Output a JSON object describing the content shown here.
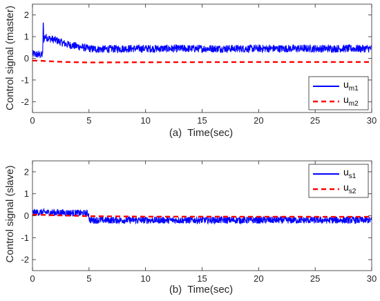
{
  "chart_data": [
    {
      "type": "line",
      "ylabel": "Control signal (master)",
      "xlabel_prefix": "(a)",
      "xlabel": "Time(sec)",
      "xlim": [
        0,
        30
      ],
      "ylim": [
        -2.5,
        2.5
      ],
      "xticks": [
        "0",
        "5",
        "10",
        "15",
        "20",
        "25",
        "30"
      ],
      "yticks": [
        "-2",
        "-1",
        "0",
        "1",
        "2"
      ],
      "grid": false,
      "legend_position": "bottom-right",
      "series": [
        {
          "name": "u_m1",
          "legend_main": "u",
          "legend_sub": "m1",
          "color": "#0000ff",
          "style": "solid",
          "noise_amplitude": 0.18,
          "x": [
            0,
            0.9,
            0.95,
            1.0,
            1.05,
            1.1,
            1.3,
            1.6,
            2,
            2.5,
            3,
            3.5,
            4,
            4.5,
            5,
            6,
            8,
            10,
            15,
            20,
            25,
            30
          ],
          "y": [
            0.2,
            0.15,
            1.8,
            0.85,
            0.95,
            1.0,
            0.95,
            0.9,
            0.85,
            0.75,
            0.65,
            0.6,
            0.55,
            0.5,
            0.45,
            0.42,
            0.45,
            0.45,
            0.45,
            0.45,
            0.45,
            0.45
          ]
        },
        {
          "name": "u_m2",
          "legend_main": "u",
          "legend_sub": "m2",
          "color": "#ff0000",
          "style": "dashed",
          "noise_amplitude": 0,
          "x": [
            0,
            1,
            2,
            3,
            5,
            10,
            20,
            30
          ],
          "y": [
            -0.1,
            -0.12,
            -0.15,
            -0.17,
            -0.19,
            -0.18,
            -0.17,
            -0.17
          ]
        }
      ]
    },
    {
      "type": "line",
      "ylabel": "Control signal (slave)",
      "xlabel_prefix": "(b)",
      "xlabel": "Time(sec)",
      "xlim": [
        0,
        30
      ],
      "ylim": [
        -2.5,
        2.5
      ],
      "xticks": [
        "0",
        "5",
        "10",
        "15",
        "20",
        "25",
        "30"
      ],
      "yticks": [
        "-2",
        "-1",
        "0",
        "1",
        "2"
      ],
      "grid": false,
      "legend_position": "top-right",
      "series": [
        {
          "name": "u_s1",
          "legend_main": "u",
          "legend_sub": "s1",
          "color": "#0000ff",
          "style": "solid",
          "noise_amplitude": 0.16,
          "x": [
            0,
            2,
            4,
            4.95,
            5.05,
            10,
            20,
            30
          ],
          "y": [
            0.15,
            0.15,
            0.12,
            0.1,
            -0.2,
            -0.2,
            -0.2,
            -0.2
          ]
        },
        {
          "name": "u_s2",
          "legend_main": "u",
          "legend_sub": "s2",
          "color": "#ff0000",
          "style": "dashed",
          "noise_amplitude": 0,
          "x": [
            0,
            5,
            10,
            30
          ],
          "y": [
            0.05,
            -0.02,
            -0.04,
            -0.05
          ]
        }
      ]
    }
  ]
}
